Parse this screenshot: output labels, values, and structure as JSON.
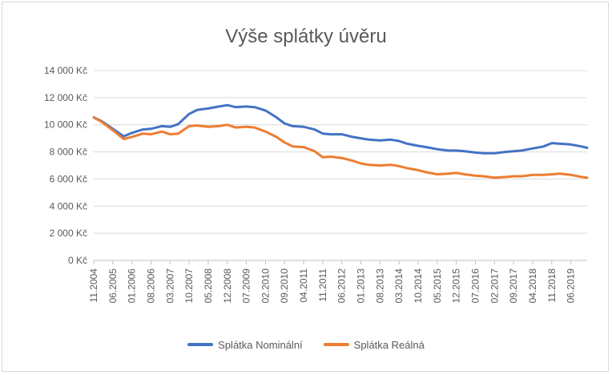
{
  "chart_data": {
    "type": "line",
    "title": "Výše splátky úvěru",
    "xlabel": "",
    "ylabel": "",
    "ylim": [
      0,
      14000
    ],
    "y_ticks": [
      0,
      2000,
      4000,
      6000,
      8000,
      10000,
      12000,
      14000
    ],
    "y_tick_labels": [
      "0 Kč",
      "2 000 Kč",
      "4 000 Kč",
      "6 000 Kč",
      "8 000 Kč",
      "10 000 Kč",
      "12 000 Kč",
      "14 000 Kč"
    ],
    "x_tick_labels": [
      "11.2004",
      "06.2005",
      "01.2006",
      "08.2006",
      "03.2007",
      "10.2007",
      "05.2008",
      "12.2008",
      "07.2009",
      "02.2010",
      "09.2010",
      "04.2011",
      "11.2011",
      "06.2012",
      "01.2013",
      "08.2013",
      "03.2014",
      "10.2014",
      "05.2015",
      "12.2015",
      "07.2016",
      "02.2017",
      "09.2017",
      "04.2018",
      "11.2018",
      "06.2019"
    ],
    "grid": "horizontal",
    "legend_position": "bottom",
    "series": [
      {
        "name": "Splátka Nominální",
        "color": "#4472C4",
        "x": [
          "11.2004",
          "02.2005",
          "06.2005",
          "10.2005",
          "01.2006",
          "05.2006",
          "08.2006",
          "12.2006",
          "03.2007",
          "06.2007",
          "10.2007",
          "01.2008",
          "05.2008",
          "09.2008",
          "12.2008",
          "03.2009",
          "07.2009",
          "10.2009",
          "02.2010",
          "06.2010",
          "09.2010",
          "12.2010",
          "04.2011",
          "08.2011",
          "11.2011",
          "02.2012",
          "06.2012",
          "10.2012",
          "01.2013",
          "04.2013",
          "08.2013",
          "12.2013",
          "03.2014",
          "06.2014",
          "10.2014",
          "01.2015",
          "05.2015",
          "09.2015",
          "12.2015",
          "03.2016",
          "07.2016",
          "10.2016",
          "02.2017",
          "06.2017",
          "09.2017",
          "12.2017",
          "04.2018",
          "08.2018",
          "11.2018",
          "02.2019",
          "06.2019",
          "10.2019",
          "12.2019"
        ],
        "values": [
          10550,
          10250,
          9700,
          9150,
          9400,
          9650,
          9700,
          9900,
          9850,
          10050,
          10800,
          11100,
          11200,
          11350,
          11450,
          11300,
          11350,
          11300,
          11050,
          10550,
          10100,
          9900,
          9850,
          9650,
          9350,
          9300,
          9300,
          9100,
          9000,
          8900,
          8850,
          8900,
          8800,
          8600,
          8450,
          8350,
          8200,
          8100,
          8100,
          8050,
          7950,
          7900,
          7900,
          8000,
          8050,
          8100,
          8250,
          8400,
          8650,
          8600,
          8550,
          8400,
          8300
        ]
      },
      {
        "name": "Splátka Reálná",
        "color": "#ED7D31",
        "x": [
          "11.2004",
          "02.2005",
          "06.2005",
          "10.2005",
          "01.2006",
          "05.2006",
          "08.2006",
          "12.2006",
          "03.2007",
          "06.2007",
          "10.2007",
          "01.2008",
          "05.2008",
          "09.2008",
          "12.2008",
          "03.2009",
          "07.2009",
          "10.2009",
          "02.2010",
          "06.2010",
          "09.2010",
          "12.2010",
          "04.2011",
          "08.2011",
          "11.2011",
          "02.2012",
          "06.2012",
          "10.2012",
          "01.2013",
          "04.2013",
          "08.2013",
          "12.2013",
          "03.2014",
          "06.2014",
          "10.2014",
          "01.2015",
          "05.2015",
          "09.2015",
          "12.2015",
          "03.2016",
          "07.2016",
          "10.2016",
          "02.2017",
          "06.2017",
          "09.2017",
          "12.2017",
          "04.2018",
          "08.2018",
          "11.2018",
          "02.2019",
          "06.2019",
          "10.2019",
          "12.2019"
        ],
        "values": [
          10550,
          10200,
          9600,
          8950,
          9100,
          9350,
          9300,
          9500,
          9300,
          9350,
          9900,
          9950,
          9850,
          9900,
          10000,
          9800,
          9850,
          9800,
          9500,
          9100,
          8700,
          8400,
          8350,
          8050,
          7600,
          7650,
          7550,
          7350,
          7150,
          7050,
          7000,
          7050,
          6950,
          6800,
          6650,
          6500,
          6350,
          6400,
          6450,
          6350,
          6250,
          6200,
          6100,
          6150,
          6200,
          6200,
          6300,
          6300,
          6350,
          6400,
          6300,
          6150,
          6100
        ]
      }
    ]
  }
}
